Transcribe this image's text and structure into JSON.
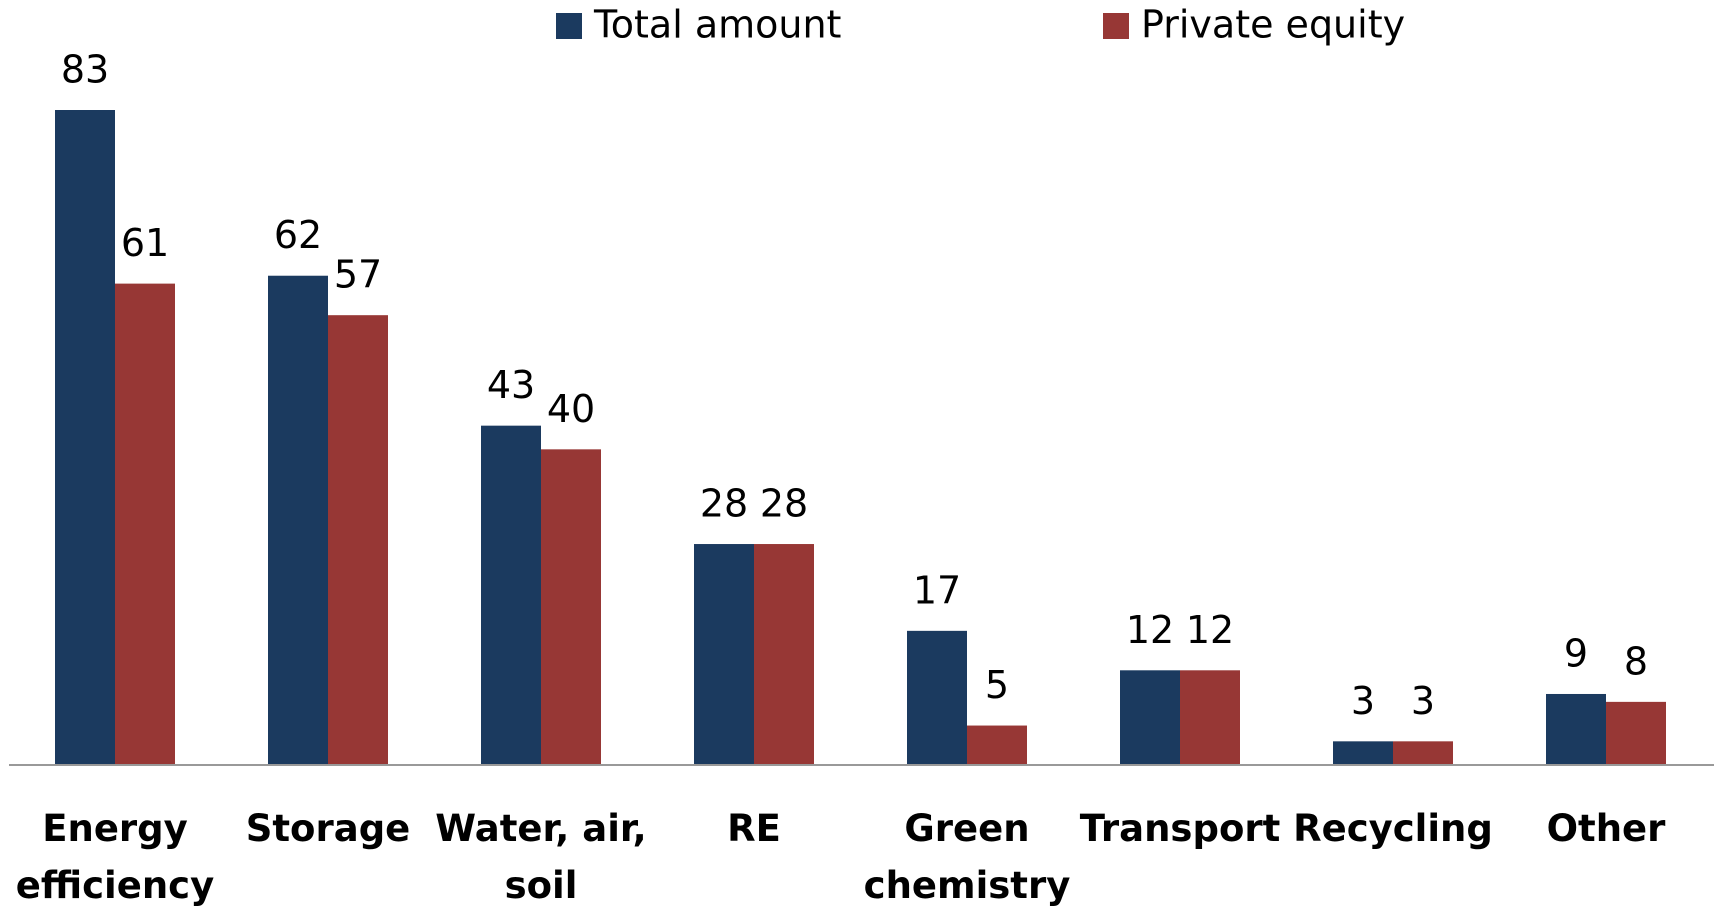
{
  "chart_data": {
    "type": "bar",
    "categories": [
      "Energy efficiency",
      "Storage",
      "Water, air, soil",
      "RE",
      "Green chemistry",
      "Transport",
      "Recycling",
      "Other"
    ],
    "series": [
      {
        "name": "Total amount",
        "color": "#1b3a5f",
        "values": [
          83,
          62,
          43,
          28,
          17,
          12,
          3,
          9
        ]
      },
      {
        "name": "Private equity",
        "color": "#973735",
        "values": [
          61,
          57,
          40,
          28,
          5,
          12,
          3,
          8
        ]
      }
    ],
    "legend": "top"
  }
}
